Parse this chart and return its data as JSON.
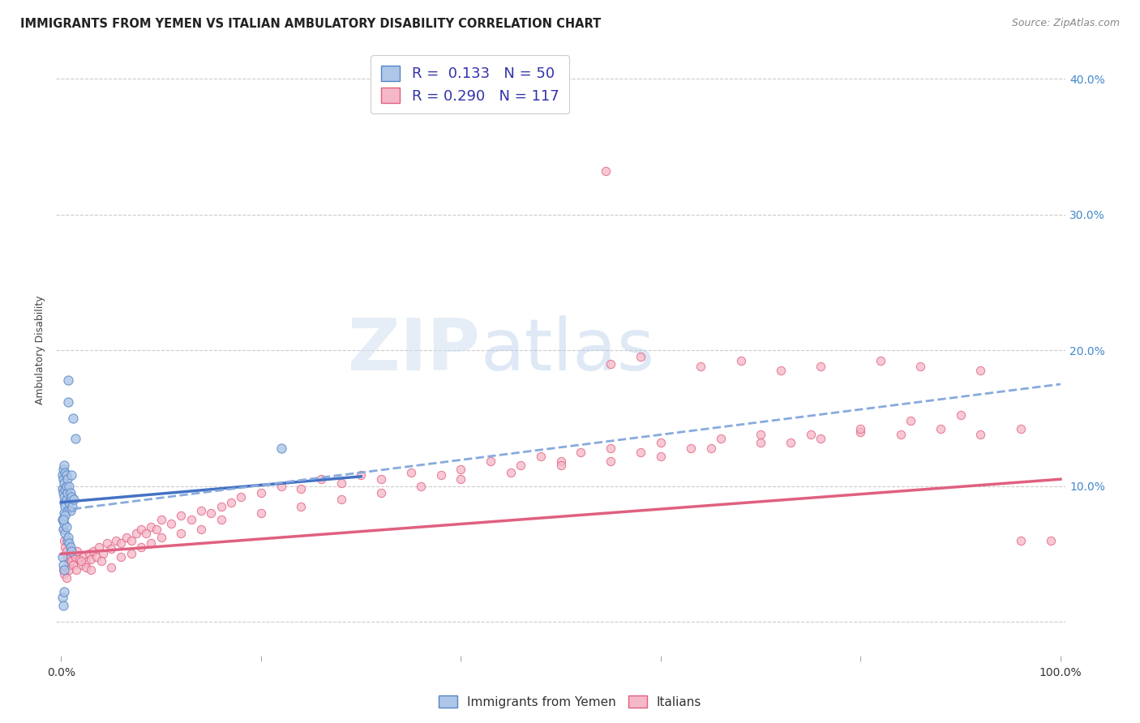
{
  "title": "IMMIGRANTS FROM YEMEN VS ITALIAN AMBULATORY DISABILITY CORRELATION CHART",
  "source": "Source: ZipAtlas.com",
  "ylabel": "Ambulatory Disability",
  "xlim": [
    -0.005,
    1.005
  ],
  "ylim": [
    -0.025,
    0.425
  ],
  "legend_r1": "R =  0.133",
  "legend_n1": "N = 50",
  "legend_r2": "R = 0.290",
  "legend_n2": "N = 117",
  "color_blue_fill": "#aec6e8",
  "color_blue_edge": "#5585c5",
  "color_pink_fill": "#f5b8c8",
  "color_pink_edge": "#e06080",
  "color_blue_line": "#4472c4",
  "color_pink_line": "#e06080",
  "color_dashed": "#88aadd",
  "watermark_zip": "ZIP",
  "watermark_atlas": "atlas",
  "title_fontsize": 10.5,
  "ylabel_fontsize": 9,
  "tick_fontsize": 10,
  "blue_scatter_x": [
    0.001,
    0.001,
    0.002,
    0.002,
    0.002,
    0.003,
    0.003,
    0.003,
    0.003,
    0.004,
    0.004,
    0.004,
    0.005,
    0.005,
    0.005,
    0.006,
    0.006,
    0.006,
    0.007,
    0.007,
    0.008,
    0.008,
    0.009,
    0.009,
    0.01,
    0.01,
    0.011,
    0.012,
    0.013,
    0.014,
    0.001,
    0.002,
    0.003,
    0.004,
    0.005,
    0.006,
    0.007,
    0.008,
    0.009,
    0.01,
    0.001,
    0.002,
    0.003,
    0.001,
    0.002,
    0.003,
    0.22,
    0.003,
    0.004,
    0.002
  ],
  "blue_scatter_y": [
    0.108,
    0.098,
    0.112,
    0.105,
    0.095,
    0.115,
    0.102,
    0.092,
    0.088,
    0.11,
    0.098,
    0.085,
    0.108,
    0.1,
    0.09,
    0.105,
    0.095,
    0.082,
    0.178,
    0.162,
    0.1,
    0.088,
    0.095,
    0.082,
    0.108,
    0.092,
    0.085,
    0.15,
    0.09,
    0.135,
    0.075,
    0.068,
    0.072,
    0.065,
    0.07,
    0.06,
    0.062,
    0.058,
    0.055,
    0.052,
    0.048,
    0.042,
    0.038,
    0.018,
    0.012,
    0.022,
    0.128,
    0.08,
    0.078,
    0.075
  ],
  "pink_scatter_x": [
    0.001,
    0.002,
    0.003,
    0.004,
    0.005,
    0.006,
    0.007,
    0.008,
    0.009,
    0.01,
    0.012,
    0.014,
    0.016,
    0.018,
    0.02,
    0.022,
    0.025,
    0.028,
    0.03,
    0.032,
    0.035,
    0.038,
    0.042,
    0.046,
    0.05,
    0.055,
    0.06,
    0.065,
    0.07,
    0.075,
    0.08,
    0.085,
    0.09,
    0.095,
    0.1,
    0.11,
    0.12,
    0.13,
    0.14,
    0.15,
    0.16,
    0.17,
    0.18,
    0.2,
    0.22,
    0.24,
    0.26,
    0.28,
    0.3,
    0.32,
    0.35,
    0.38,
    0.4,
    0.43,
    0.46,
    0.48,
    0.5,
    0.52,
    0.55,
    0.58,
    0.6,
    0.63,
    0.66,
    0.7,
    0.73,
    0.76,
    0.8,
    0.84,
    0.88,
    0.92,
    0.96,
    0.99,
    0.002,
    0.003,
    0.005,
    0.008,
    0.012,
    0.015,
    0.02,
    0.025,
    0.03,
    0.04,
    0.05,
    0.06,
    0.07,
    0.08,
    0.09,
    0.1,
    0.12,
    0.14,
    0.16,
    0.2,
    0.24,
    0.28,
    0.32,
    0.36,
    0.4,
    0.45,
    0.5,
    0.55,
    0.6,
    0.65,
    0.7,
    0.75,
    0.8,
    0.85,
    0.9,
    0.55,
    0.58,
    0.64,
    0.68,
    0.72,
    0.76,
    0.82,
    0.86,
    0.92,
    0.96
  ],
  "pink_scatter_y": [
    0.075,
    0.068,
    0.06,
    0.055,
    0.052,
    0.048,
    0.045,
    0.042,
    0.048,
    0.045,
    0.05,
    0.048,
    0.052,
    0.046,
    0.042,
    0.048,
    0.044,
    0.05,
    0.046,
    0.052,
    0.048,
    0.055,
    0.05,
    0.058,
    0.054,
    0.06,
    0.058,
    0.062,
    0.06,
    0.065,
    0.068,
    0.065,
    0.07,
    0.068,
    0.075,
    0.072,
    0.078,
    0.075,
    0.082,
    0.08,
    0.085,
    0.088,
    0.092,
    0.095,
    0.1,
    0.098,
    0.105,
    0.102,
    0.108,
    0.105,
    0.11,
    0.108,
    0.112,
    0.118,
    0.115,
    0.122,
    0.118,
    0.125,
    0.128,
    0.125,
    0.132,
    0.128,
    0.135,
    0.138,
    0.132,
    0.135,
    0.14,
    0.138,
    0.142,
    0.138,
    0.142,
    0.06,
    0.038,
    0.035,
    0.032,
    0.038,
    0.042,
    0.038,
    0.045,
    0.04,
    0.038,
    0.045,
    0.04,
    0.048,
    0.05,
    0.055,
    0.058,
    0.062,
    0.065,
    0.068,
    0.075,
    0.08,
    0.085,
    0.09,
    0.095,
    0.1,
    0.105,
    0.11,
    0.115,
    0.118,
    0.122,
    0.128,
    0.132,
    0.138,
    0.142,
    0.148,
    0.152,
    0.19,
    0.195,
    0.188,
    0.192,
    0.185,
    0.188,
    0.192,
    0.188,
    0.185,
    0.06
  ],
  "outlier_pink_x": [
    0.545
  ],
  "outlier_pink_y": [
    0.332
  ],
  "blue_trend_x": [
    0.0,
    0.3
  ],
  "blue_trend_y": [
    0.088,
    0.107
  ],
  "pink_trend_x": [
    0.0,
    1.0
  ],
  "pink_trend_y": [
    0.05,
    0.105
  ],
  "dashed_trend_x": [
    0.0,
    1.0
  ],
  "dashed_trend_y": [
    0.082,
    0.175
  ]
}
